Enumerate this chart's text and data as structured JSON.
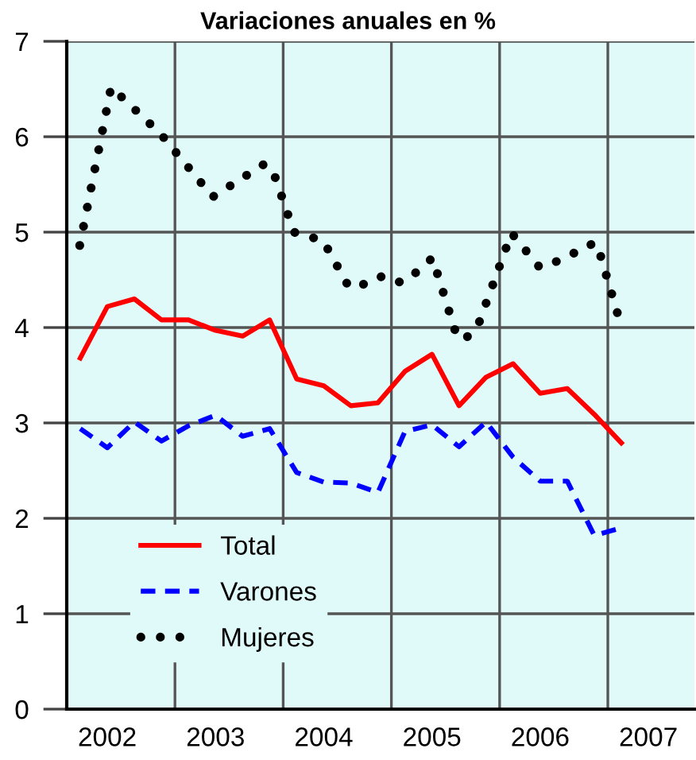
{
  "chart_data": {
    "type": "line",
    "title": "Variaciones anuales en %",
    "xlim": [
      2002,
      2007.8
    ],
    "ylim": [
      0,
      7
    ],
    "xticks": [
      {
        "value": 2002.375,
        "label": "2002"
      },
      {
        "value": 2003,
        "label": null
      },
      {
        "value": 2003.375,
        "label": "2003"
      },
      {
        "value": 2004,
        "label": null
      },
      {
        "value": 2004.375,
        "label": "2004"
      },
      {
        "value": 2005,
        "label": null
      },
      {
        "value": 2005.375,
        "label": "2005"
      },
      {
        "value": 2006,
        "label": null
      },
      {
        "value": 2006.375,
        "label": "2006"
      },
      {
        "value": 2007,
        "label": null
      },
      {
        "value": 2007.375,
        "label": "2007"
      }
    ],
    "yticks": [
      0,
      1,
      2,
      3,
      4,
      5,
      6,
      7
    ],
    "grid": true,
    "legend": "bottom left",
    "series": [
      {
        "name": "Total",
        "color": "#ff0000",
        "line_style": "solid",
        "x": [
          2002.125,
          2002.375,
          2002.625,
          2002.875,
          2003.125,
          2003.375,
          2003.625,
          2003.875,
          2004.125,
          2004.375,
          2004.625,
          2004.875,
          2005.125,
          2005.375,
          2005.625,
          2005.875,
          2006.125,
          2006.375,
          2006.625,
          2006.875,
          2007.125
        ],
        "values": [
          3.68,
          4.22,
          4.3,
          4.08,
          4.08,
          3.97,
          3.91,
          4.08,
          3.46,
          3.39,
          3.18,
          3.21,
          3.54,
          3.72,
          3.18,
          3.48,
          3.62,
          3.31,
          3.36,
          3.09,
          2.79
        ]
      },
      {
        "name": "Varones",
        "color": "#0000ff",
        "line_style": "dashed",
        "x": [
          2002.125,
          2002.375,
          2002.625,
          2002.875,
          2003.125,
          2003.375,
          2003.625,
          2003.875,
          2004.125,
          2004.375,
          2004.625,
          2004.875,
          2005.125,
          2005.375,
          2005.625,
          2005.875,
          2006.125,
          2006.375,
          2006.625,
          2006.875,
          2007.125
        ],
        "values": [
          2.94,
          2.74,
          3.01,
          2.81,
          2.97,
          3.08,
          2.86,
          2.94,
          2.48,
          2.38,
          2.37,
          2.27,
          2.91,
          2.98,
          2.75,
          3.01,
          2.64,
          2.39,
          2.39,
          1.82,
          1.9
        ]
      },
      {
        "name": "Mujeres",
        "color": "#000000",
        "line_style": "dotted",
        "x": [
          2002.12,
          2002.41,
          2002.86,
          2003.35,
          2003.82,
          2003.9,
          2004.1,
          2004.37,
          2004.59,
          2004.69,
          2004.81,
          2004.94,
          2005.09,
          2005.21,
          2005.38,
          2005.61,
          2005.69,
          2005.8,
          2006.11,
          2006.37,
          2006.52,
          2006.66,
          2006.79,
          2006.9,
          2007.12
        ],
        "values": [
          4.86,
          6.52,
          6.04,
          5.37,
          5.71,
          5.66,
          5.0,
          4.91,
          4.46,
          4.41,
          4.51,
          4.54,
          4.47,
          4.56,
          4.73,
          3.89,
          3.89,
          4.02,
          4.99,
          4.63,
          4.69,
          4.76,
          4.86,
          4.88,
          4.03
        ]
      }
    ]
  }
}
